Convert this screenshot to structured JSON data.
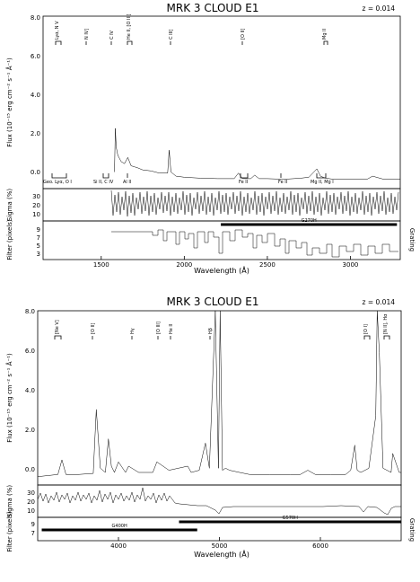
{
  "chart_data": [
    {
      "type": "line",
      "title": "MRK 3 CLOUD E1",
      "redshift_label": "z = 0.014",
      "xlabel": "Wavelength (Å)",
      "xlim": [
        1150,
        3300
      ],
      "xticks": [
        1500,
        2000,
        2500,
        3000
      ],
      "flux": {
        "ylabel": "Flux (10⁻¹⁵ erg cm⁻² s⁻¹ Å⁻¹)",
        "ylim": [
          -0.3,
          8.0
        ],
        "yticks": [
          "0.0",
          "2.0",
          "4.0",
          "6.0",
          "8.0"
        ],
        "series": [
          {
            "x": [
              1580,
              1585,
              1590,
              1600,
              1620,
              1640,
              1660,
              1680,
              1700,
              1720,
              1750,
              1800,
              1850,
              1900,
              1909,
              1920,
              1950,
              2000,
              2100,
              2200,
              2300,
              2326,
              2350,
              2400,
              2424,
              2450,
              2500,
              2600,
              2700,
              2750,
              2798,
              2820,
              2850,
              2900,
              3000,
              3100,
              3133,
              3200,
              3300
            ],
            "y": [
              0.5,
              2.6,
              1.7,
              1.3,
              1.0,
              0.9,
              1.2,
              0.8,
              0.75,
              0.7,
              0.6,
              0.55,
              0.45,
              0.45,
              1.55,
              0.5,
              0.3,
              0.25,
              0.2,
              0.18,
              0.18,
              0.45,
              0.18,
              0.18,
              0.35,
              0.18,
              0.18,
              0.15,
              0.2,
              0.25,
              0.65,
              0.3,
              0.2,
              0.15,
              0.15,
              0.15,
              0.3,
              0.15,
              0.15
            ]
          }
        ],
        "emission_lines": [
          "Lyα, N V",
          "N IV]",
          "C IV",
          "He II, [O III]",
          "C III]",
          "[O II]",
          "Mg II"
        ],
        "absorption_lines": [
          "Geo. Lyα, O I",
          "Si II, C IV",
          "Al II",
          "Fe II",
          "Fe II",
          "Mg II, Mg I"
        ]
      },
      "sigma": {
        "ylabel": "Sigma (%)",
        "yticks": [
          "10",
          "20",
          "30"
        ]
      },
      "filter": {
        "ylabel": "Filter (pixels)",
        "right_label": "Grating",
        "yticks": [
          "3",
          "5",
          "7",
          "9"
        ],
        "gratings": [
          {
            "name": "G270H",
            "range": [
              2220,
              3280
            ]
          }
        ]
      }
    },
    {
      "type": "line",
      "title": "MRK 3 CLOUD E1",
      "redshift_label": "z = 0.014",
      "xlabel": "Wavelength (Å)",
      "xlim": [
        3200,
        6800
      ],
      "xticks": [
        4000,
        5000,
        6000
      ],
      "flux": {
        "ylabel": "Flux (10⁻¹⁵ erg cm⁻² s⁻¹ Å⁻¹)",
        "ylim": [
          -0.3,
          8.0
        ],
        "yticks": [
          "0.0",
          "2.0",
          "4.0",
          "6.0",
          "8.0"
        ],
        "series": [
          {
            "x": [
              3200,
              3300,
              3400,
              3440,
              3480,
              3600,
              3750,
              3780,
              3820,
              3870,
              3900,
              3930,
              3960,
              4000,
              4070,
              4100,
              4200,
              4340,
              4380,
              4500,
              4686,
              4720,
              4800,
              4861,
              4900,
              4959,
              4990,
              5007,
              5030,
              5060,
              5100,
              5200,
              5300,
              5500,
              5700,
              5800,
              5876,
              5950,
              6100,
              6250,
              6300,
              6340,
              6364,
              6400,
              6480,
              6548,
              6563,
              6584,
              6620,
              6700,
              6716,
              6731,
              6780,
              6800
            ],
            "y": [
              0.1,
              0.15,
              0.2,
              0.9,
              0.2,
              0.2,
              0.25,
              3.3,
              0.5,
              0.3,
              1.9,
              0.6,
              0.3,
              0.8,
              0.3,
              0.6,
              0.3,
              0.3,
              0.8,
              0.4,
              0.6,
              0.3,
              0.4,
              1.7,
              0.5,
              8.2,
              0.5,
              8.2,
              0.4,
              0.5,
              0.4,
              0.3,
              0.2,
              0.2,
              0.2,
              0.2,
              0.4,
              0.2,
              0.2,
              0.2,
              0.4,
              1.6,
              0.4,
              0.3,
              0.5,
              3.0,
              8.2,
              6.0,
              0.5,
              0.3,
              1.2,
              1.0,
              0.3,
              0.3
            ]
          }
        ],
        "emission_lines": [
          "[Ne V]",
          "[O II]",
          "Hγ",
          "[O III]",
          "He II",
          "Hβ",
          "[O I]",
          "[N II], Hα"
        ]
      },
      "sigma": {
        "ylabel": "Sigma (%)",
        "yticks": [
          "10",
          "20",
          "30"
        ]
      },
      "filter": {
        "ylabel": "Filter (pixels)",
        "right_label": "Grating",
        "yticks": [
          "7",
          "9"
        ],
        "gratings": [
          {
            "name": "G400H",
            "range": [
              3240,
              4780
            ]
          },
          {
            "name": "G570H",
            "range": [
              4600,
              6800
            ]
          }
        ]
      }
    }
  ]
}
